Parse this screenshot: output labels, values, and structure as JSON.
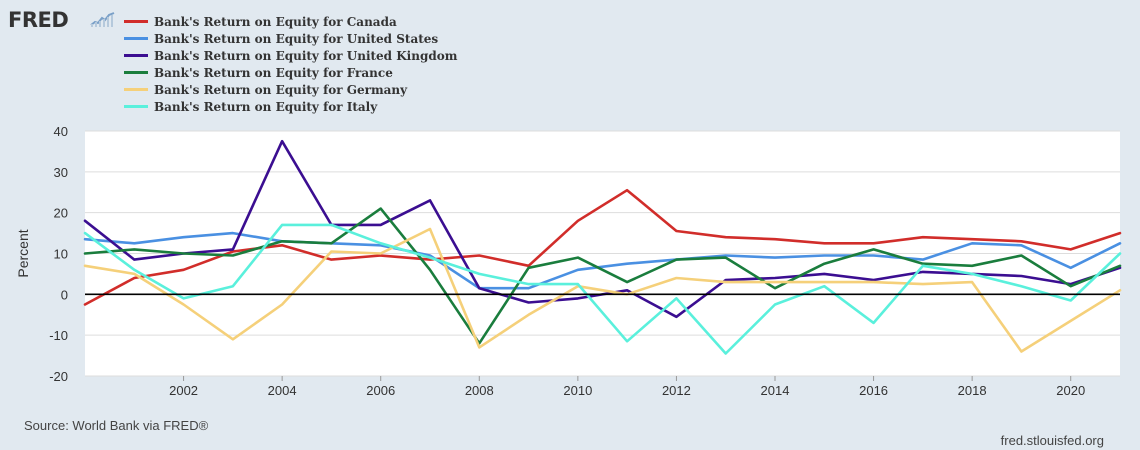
{
  "header": {
    "logo_text": "FRED",
    "logo_icon": "trend-graph-icon"
  },
  "footer": {
    "source": "Source: World Bank via FRED®",
    "url": "fred.stlouisfed.org"
  },
  "colors": {
    "background": "#e1e9f0",
    "plot_background": "#ffffff",
    "grid": "#dddddd",
    "zero_line": "#000000"
  },
  "chart_data": {
    "type": "line",
    "title": "",
    "xlabel": "",
    "ylabel": "Percent",
    "xlim": [
      2000,
      2021
    ],
    "ylim": [
      -20,
      40
    ],
    "yticks": [
      -20,
      -10,
      0,
      10,
      20,
      30,
      40
    ],
    "ytick_labels": [
      "-20",
      "-10",
      "0",
      "10",
      "20",
      "30",
      "40"
    ],
    "xticks": [
      2002,
      2004,
      2006,
      2008,
      2010,
      2012,
      2014,
      2016,
      2018,
      2020
    ],
    "xtick_labels": [
      "2002",
      "2004",
      "2006",
      "2008",
      "2010",
      "2012",
      "2014",
      "2016",
      "2018",
      "2020"
    ],
    "grid": true,
    "legend_position": "top-left",
    "x": [
      2000,
      2001,
      2002,
      2003,
      2004,
      2005,
      2006,
      2007,
      2008,
      2009,
      2010,
      2011,
      2012,
      2013,
      2014,
      2015,
      2016,
      2017,
      2018,
      2019,
      2020,
      2021
    ],
    "series": [
      {
        "name": "Bank's Return on Equity for Canada",
        "color": "#d12d2a",
        "values": [
          -2.5,
          4,
          6,
          10.5,
          12,
          8.5,
          9.5,
          8.5,
          9.5,
          7,
          18,
          25.5,
          15.5,
          14,
          13.5,
          12.5,
          12.5,
          14,
          13.5,
          13,
          11,
          15
        ]
      },
      {
        "name": "Bank's Return on Equity for United States",
        "color": "#4a90e2",
        "values": [
          13.5,
          12.5,
          14,
          15,
          13,
          12.5,
          12,
          9.5,
          1.5,
          1.5,
          6,
          7.5,
          8.5,
          9.5,
          9,
          9.5,
          9.5,
          8.5,
          12.5,
          12,
          6.5,
          12.5
        ]
      },
      {
        "name": "Bank's Return on Equity for United Kingdom",
        "color": "#3b0e91",
        "values": [
          18,
          8.5,
          10,
          11,
          37.5,
          17,
          17,
          23,
          1.5,
          -2,
          -1,
          1,
          -5.5,
          3.5,
          4,
          5,
          3.5,
          5.5,
          5,
          4.5,
          2.5,
          6.5
        ]
      },
      {
        "name": "Bank's Return on Equity for France",
        "color": "#1a7d3d",
        "values": [
          10,
          11,
          10,
          9.5,
          13,
          12.5,
          21,
          6,
          -12,
          6.5,
          9,
          3,
          8.5,
          9,
          1.5,
          7.5,
          11,
          7.5,
          7,
          9.5,
          2,
          7
        ]
      },
      {
        "name": "Bank's Return on Equity for Germany",
        "color": "#f5d07a",
        "values": [
          7,
          5,
          -2.5,
          -11,
          -2.5,
          10.5,
          10,
          16,
          -13,
          -5,
          2,
          0,
          4,
          3,
          3,
          3,
          3,
          2.5,
          3,
          -14,
          -6.5,
          1
        ]
      },
      {
        "name": "Bank's Return on Equity for Italy",
        "color": "#5af0dc",
        "values": [
          15,
          6,
          -1,
          2,
          17,
          17,
          12.5,
          9,
          5,
          2.5,
          2.5,
          -11.5,
          -1,
          -14.5,
          -2.5,
          2,
          -7,
          7,
          5,
          2,
          -1.5,
          10
        ]
      }
    ]
  }
}
